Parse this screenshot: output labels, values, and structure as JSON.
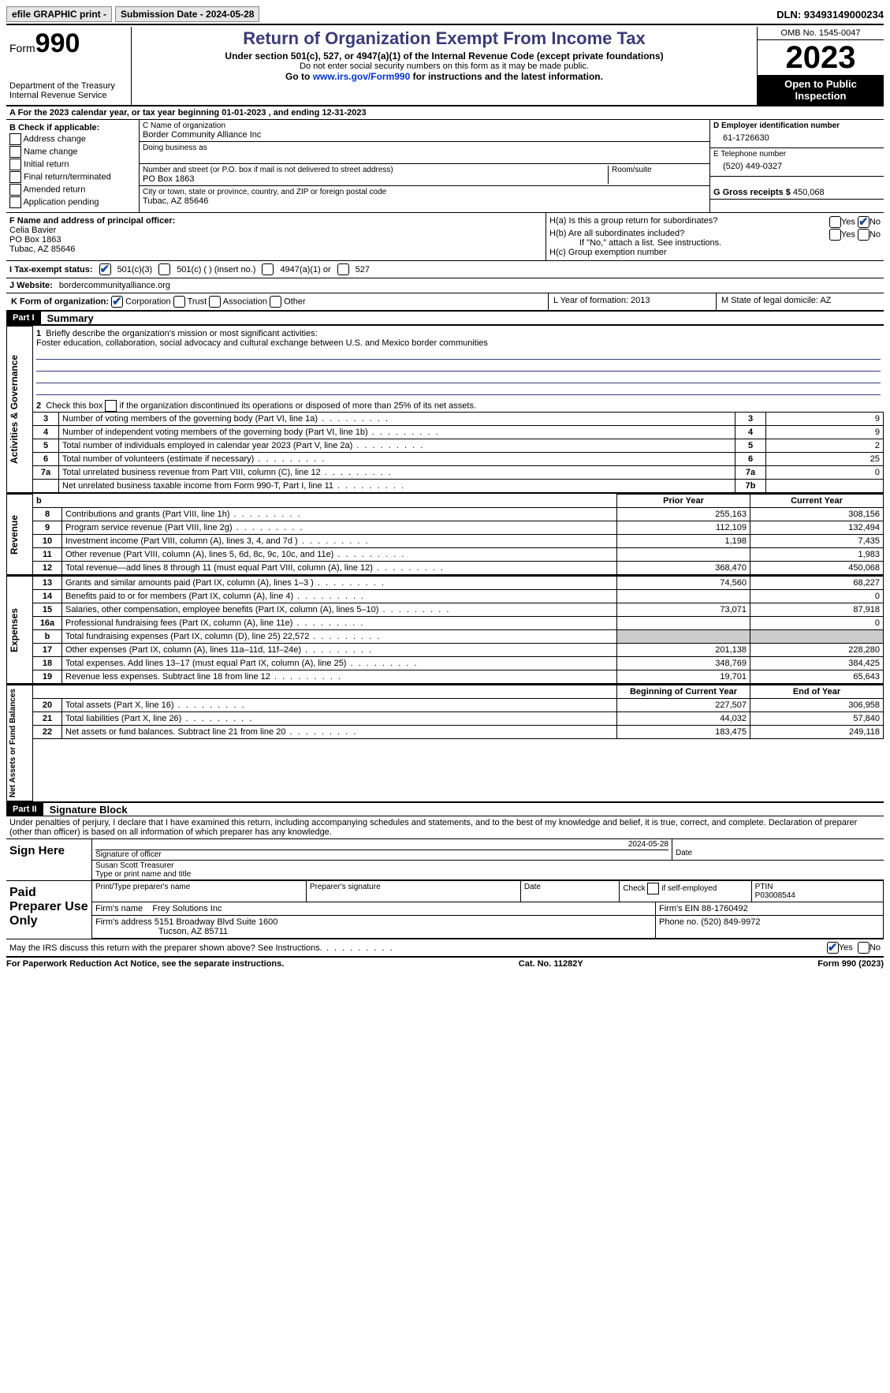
{
  "topbar": {
    "efile": "efile GRAPHIC print -",
    "submission_label": "Submission Date - 2024-05-28",
    "dln_label": "DLN:",
    "dln": "93493149000234"
  },
  "header": {
    "form_prefix": "Form",
    "form_number": "990",
    "dept": "Department of the Treasury\nInternal Revenue Service",
    "title": "Return of Organization Exempt From Income Tax",
    "sub1": "Under section 501(c), 527, or 4947(a)(1) of the Internal Revenue Code (except private foundations)",
    "sub2": "Do not enter social security numbers on this form as it may be made public.",
    "sub3_pre": "Go to ",
    "sub3_link": "www.irs.gov/Form990",
    "sub3_post": " for instructions and the latest information.",
    "omb": "OMB No. 1545-0047",
    "year": "2023",
    "open": "Open to Public Inspection"
  },
  "rowA": {
    "label_pre": "A For the 2023 calendar year, or tax year beginning ",
    "begin": "01-01-2023",
    "mid": " , and ending ",
    "end": "12-31-2023"
  },
  "boxB": {
    "title": "B Check if applicable:",
    "opts": [
      "Address change",
      "Name change",
      "Initial return",
      "Final return/terminated",
      "Amended return",
      "Application pending"
    ]
  },
  "boxC": {
    "name_label": "C Name of organization",
    "name": "Border Community Alliance Inc",
    "dba_label": "Doing business as",
    "street_label": "Number and street (or P.O. box if mail is not delivered to street address)",
    "room_label": "Room/suite",
    "street": "PO Box 1863",
    "city_label": "City or town, state or province, country, and ZIP or foreign postal code",
    "city": "Tubac, AZ  85646"
  },
  "boxD": {
    "ein_label": "D Employer identification number",
    "ein": "61-1726630",
    "tel_label": "E Telephone number",
    "tel": "(520) 449-0327",
    "gross_label": "G Gross receipts $",
    "gross": "450,068"
  },
  "boxF": {
    "label": "F  Name and address of principal officer:",
    "name": "Celia Bavier",
    "street": "PO Box 1863",
    "city": "Tubac, AZ  85646"
  },
  "boxH": {
    "a_label": "H(a)  Is this a group return for subordinates?",
    "b_label": "H(b)  Are all subordinates included?",
    "b_note": "If \"No,\" attach a list. See instructions.",
    "c_label": "H(c)  Group exemption number",
    "yes": "Yes",
    "no": "No"
  },
  "rowI": {
    "label": "I   Tax-exempt status:",
    "o1": "501(c)(3)",
    "o2": "501(c) (  ) (insert no.)",
    "o3": "4947(a)(1) or",
    "o4": "527"
  },
  "rowJ": {
    "label": "J   Website:",
    "value": "bordercommunityalliance.org"
  },
  "rowK": {
    "label": "K Form of organization:",
    "opts": [
      "Corporation",
      "Trust",
      "Association",
      "Other"
    ],
    "L": "L Year of formation: 2013",
    "M": "M State of legal domicile: AZ"
  },
  "part1": {
    "bar": "Part I",
    "title": "Summary",
    "l1": "Briefly describe the organization's mission or most significant activities:",
    "mission": "Foster education, collaboration, social advocacy and cultural exchange between U.S. and Mexico border communities",
    "l2": "Check this box",
    "l2b": "if the organization discontinued its operations or disposed of more than 25% of its net assets.",
    "side_ag": "Activities & Governance",
    "side_rev": "Revenue",
    "side_exp": "Expenses",
    "side_na": "Net Assets or Fund Balances",
    "rows_ag": [
      {
        "n": "3",
        "desc": "Number of voting members of the governing body (Part VI, line 1a)",
        "box": "3",
        "val": "9"
      },
      {
        "n": "4",
        "desc": "Number of independent voting members of the governing body (Part VI, line 1b)",
        "box": "4",
        "val": "9"
      },
      {
        "n": "5",
        "desc": "Total number of individuals employed in calendar year 2023 (Part V, line 2a)",
        "box": "5",
        "val": "2"
      },
      {
        "n": "6",
        "desc": "Total number of volunteers (estimate if necessary)",
        "box": "6",
        "val": "25"
      },
      {
        "n": "7a",
        "desc": "Total unrelated business revenue from Part VIII, column (C), line 12",
        "box": "7a",
        "val": "0"
      },
      {
        "n": "",
        "desc": "Net unrelated business taxable income from Form 990-T, Part I, line 11",
        "box": "7b",
        "val": ""
      }
    ],
    "hdr_prior": "Prior Year",
    "hdr_curr": "Current Year",
    "rows_rev": [
      {
        "n": "8",
        "desc": "Contributions and grants (Part VIII, line 1h)",
        "p": "255,163",
        "c": "308,156"
      },
      {
        "n": "9",
        "desc": "Program service revenue (Part VIII, line 2g)",
        "p": "112,109",
        "c": "132,494"
      },
      {
        "n": "10",
        "desc": "Investment income (Part VIII, column (A), lines 3, 4, and 7d )",
        "p": "1,198",
        "c": "7,435"
      },
      {
        "n": "11",
        "desc": "Other revenue (Part VIII, column (A), lines 5, 6d, 8c, 9c, 10c, and 11e)",
        "p": "",
        "c": "1,983"
      },
      {
        "n": "12",
        "desc": "Total revenue—add lines 8 through 11 (must equal Part VIII, column (A), line 12)",
        "p": "368,470",
        "c": "450,068"
      }
    ],
    "rows_exp": [
      {
        "n": "13",
        "desc": "Grants and similar amounts paid (Part IX, column (A), lines 1–3 )",
        "p": "74,560",
        "c": "68,227"
      },
      {
        "n": "14",
        "desc": "Benefits paid to or for members (Part IX, column (A), line 4)",
        "p": "",
        "c": "0"
      },
      {
        "n": "15",
        "desc": "Salaries, other compensation, employee benefits (Part IX, column (A), lines 5–10)",
        "p": "73,071",
        "c": "87,918"
      },
      {
        "n": "16a",
        "desc": "Professional fundraising fees (Part IX, column (A), line 11e)",
        "p": "",
        "c": "0"
      },
      {
        "n": "b",
        "desc": "Total fundraising expenses (Part IX, column (D), line 25) 22,572",
        "p": "SHADE",
        "c": "SHADE"
      },
      {
        "n": "17",
        "desc": "Other expenses (Part IX, column (A), lines 11a–11d, 11f–24e)",
        "p": "201,138",
        "c": "228,280"
      },
      {
        "n": "18",
        "desc": "Total expenses. Add lines 13–17 (must equal Part IX, column (A), line 25)",
        "p": "348,769",
        "c": "384,425"
      },
      {
        "n": "19",
        "desc": "Revenue less expenses. Subtract line 18 from line 12",
        "p": "19,701",
        "c": "65,643"
      }
    ],
    "hdr_boy": "Beginning of Current Year",
    "hdr_eoy": "End of Year",
    "rows_na": [
      {
        "n": "20",
        "desc": "Total assets (Part X, line 16)",
        "p": "227,507",
        "c": "306,958"
      },
      {
        "n": "21",
        "desc": "Total liabilities (Part X, line 26)",
        "p": "44,032",
        "c": "57,840"
      },
      {
        "n": "22",
        "desc": "Net assets or fund balances. Subtract line 21 from line 20",
        "p": "183,475",
        "c": "249,118"
      }
    ]
  },
  "part2": {
    "bar": "Part II",
    "title": "Signature Block",
    "decl": "Under penalties of perjury, I declare that I have examined this return, including accompanying schedules and statements, and to the best of my knowledge and belief, it is true, correct, and complete. Declaration of preparer (other than officer) is based on all information of which preparer has any knowledge.",
    "sign_here": "Sign Here",
    "sig_officer": "Signature of officer",
    "sig_date": "Date",
    "sig_date_val": "2024-05-28",
    "officer_name": "Susan Scott Treasurer",
    "type_name": "Type or print name and title",
    "paid": "Paid Preparer Use Only",
    "prep_name_h": "Print/Type preparer's name",
    "prep_sig_h": "Preparer's signature",
    "date_h": "Date",
    "self_h": "Check         if self-employed",
    "ptin_h": "PTIN",
    "ptin": "P03008544",
    "firm_name_l": "Firm's name",
    "firm_name": "Frey Solutions Inc",
    "firm_ein_l": "Firm's EIN",
    "firm_ein": "88-1760492",
    "firm_addr_l": "Firm's address",
    "firm_addr1": "5151 Broadway Blvd Suite 1600",
    "firm_addr2": "Tucson, AZ  85711",
    "phone_l": "Phone no.",
    "phone": "(520) 849-9972",
    "discuss": "May the IRS discuss this return with the preparer shown above? See Instructions.",
    "yes": "Yes",
    "no": "No"
  },
  "footer": {
    "left": "For Paperwork Reduction Act Notice, see the separate instructions.",
    "mid": "Cat. No. 11282Y",
    "right_pre": "Form ",
    "right_num": "990",
    "right_post": " (2023)"
  }
}
